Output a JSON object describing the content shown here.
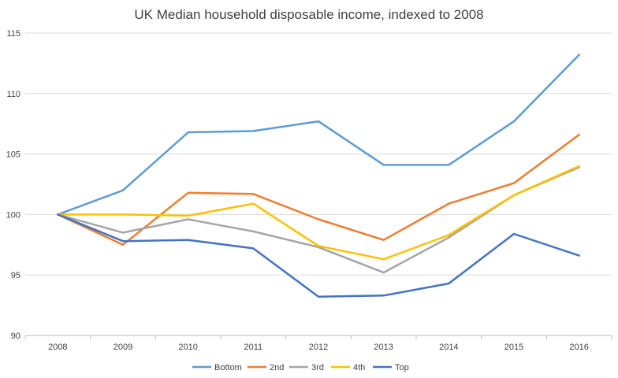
{
  "chart_data": {
    "type": "line",
    "title": "UK Median household disposable income, indexed to 2008",
    "xlabel": "",
    "ylabel": "",
    "categories": [
      "2008",
      "2009",
      "2010",
      "2011",
      "2012",
      "2013",
      "2014",
      "2015",
      "2016"
    ],
    "ylim": [
      90,
      115
    ],
    "yticks": [
      "90",
      "95",
      "100",
      "105",
      "110",
      "115"
    ],
    "grid": "horizontal",
    "legend": "bottom",
    "series": [
      {
        "name": "Bottom",
        "color": "#5b9bd5",
        "values": [
          100,
          102.0,
          106.8,
          106.9,
          107.7,
          104.1,
          104.1,
          107.7,
          113.2
        ]
      },
      {
        "name": "2nd",
        "color": "#ed7d31",
        "values": [
          100,
          97.5,
          101.8,
          101.7,
          99.6,
          97.9,
          100.9,
          102.6,
          106.6
        ]
      },
      {
        "name": "3rd",
        "color": "#a5a5a5",
        "values": [
          100,
          98.5,
          99.6,
          98.6,
          97.3,
          95.2,
          98.1,
          101.6,
          103.9
        ]
      },
      {
        "name": "4th",
        "color": "#ffc000",
        "values": [
          100,
          100.0,
          99.9,
          100.9,
          97.4,
          96.3,
          98.3,
          101.6,
          104.0
        ]
      },
      {
        "name": "Top",
        "color": "#4472c4",
        "values": [
          100,
          97.8,
          97.9,
          97.2,
          93.2,
          93.3,
          94.3,
          98.4,
          96.6
        ]
      }
    ]
  }
}
